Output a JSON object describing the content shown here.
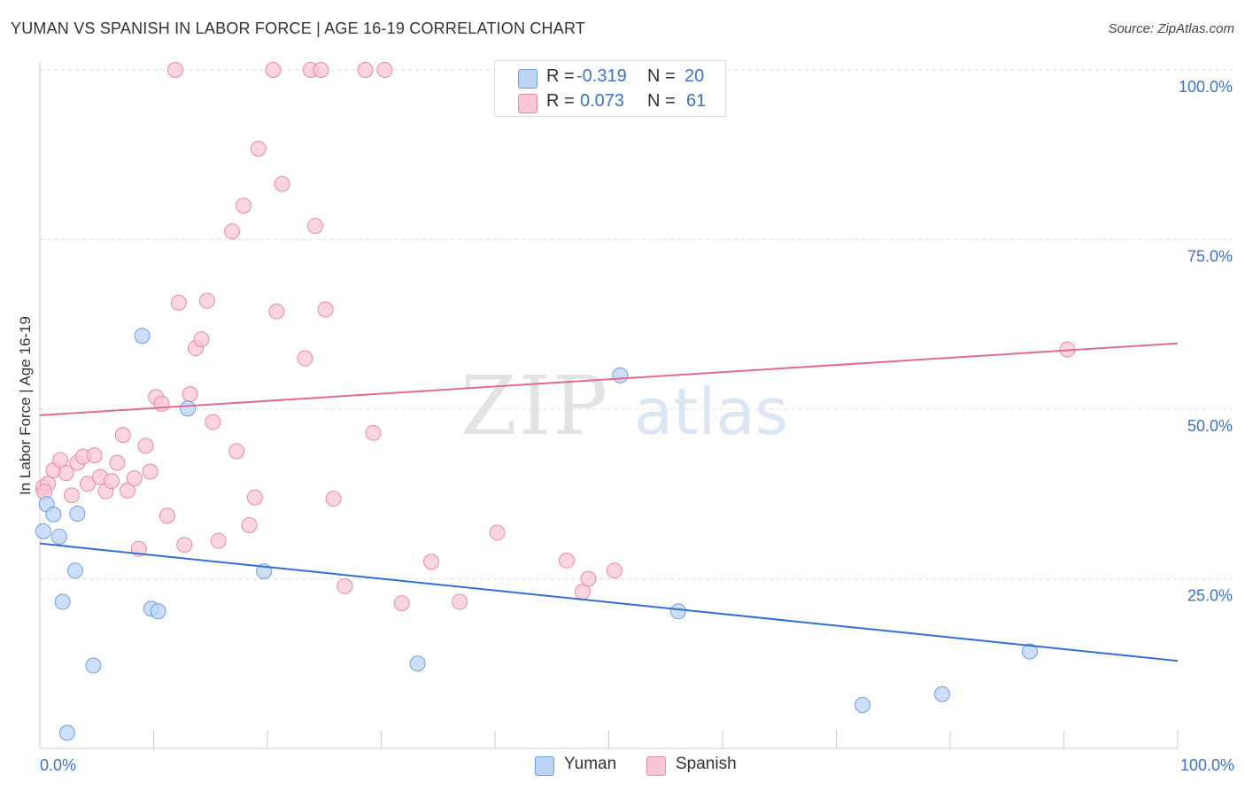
{
  "header": {
    "title": "YUMAN VS SPANISH IN LABOR FORCE | AGE 16-19 CORRELATION CHART",
    "source": "Source: ZipAtlas.com"
  },
  "colors": {
    "yuman_fill": "#bcd4f6",
    "yuman_stroke": "#6f9fe0",
    "yuman_line": "#2f6fd0",
    "spanish_fill": "#f8c6d4",
    "spanish_stroke": "#ea8aa6",
    "spanish_line": "#e06b92",
    "tick_text": "#3b73c9",
    "grid": "#dddddd"
  },
  "legend": {
    "rows": [
      {
        "r_label": "R =",
        "r_value": "-0.319",
        "n_label": "N =",
        "n_value": "20"
      },
      {
        "r_label": "R =",
        "r_value": "0.073",
        "n_label": "N =",
        "n_value": "61"
      }
    ]
  },
  "bottom_legend": {
    "series1": "Yuman",
    "series2": "Spanish"
  },
  "watermark": {
    "part1": "ZIP",
    "part2": "atlas"
  },
  "chart_data": {
    "type": "scatter",
    "title": "YUMAN VS SPANISH IN LABOR FORCE | AGE 16-19 CORRELATION CHART",
    "xlabel": "",
    "ylabel": "In Labor Force | Age 16-19",
    "xlim": [
      0,
      100
    ],
    "ylim": [
      0,
      100
    ],
    "x_tick_labels": [
      "0.0%",
      "100.0%"
    ],
    "y_ticks": [
      25,
      50,
      75,
      100
    ],
    "y_tick_labels": [
      "25.0%",
      "50.0%",
      "75.0%",
      "100.0%"
    ],
    "legend_position": "top-center",
    "series": [
      {
        "name": "Yuman",
        "R": -0.319,
        "N": 20,
        "trend": [
          [
            0,
            30.2
          ],
          [
            100,
            12.9
          ]
        ],
        "points": [
          [
            0.3,
            32
          ],
          [
            0.6,
            36
          ],
          [
            1.2,
            34.5
          ],
          [
            1.7,
            31.2
          ],
          [
            2,
            21.6
          ],
          [
            2.4,
            2.3
          ],
          [
            3.1,
            26.2
          ],
          [
            3.3,
            34.6
          ],
          [
            4.7,
            12.2
          ],
          [
            9,
            60.8
          ],
          [
            9.8,
            20.6
          ],
          [
            10.4,
            20.2
          ],
          [
            13,
            50.1
          ],
          [
            19.7,
            26.1
          ],
          [
            33.2,
            12.5
          ],
          [
            51,
            55
          ],
          [
            56.1,
            20.2
          ],
          [
            72.3,
            6.4
          ],
          [
            79.3,
            8
          ],
          [
            87,
            14.3
          ]
        ]
      },
      {
        "name": "Spanish",
        "R": 0.073,
        "N": 61,
        "trend": [
          [
            0,
            49.1
          ],
          [
            100,
            59.7
          ]
        ],
        "points": [
          [
            0.3,
            38.5
          ],
          [
            0.7,
            39
          ],
          [
            1.2,
            41
          ],
          [
            1.8,
            42.5
          ],
          [
            2.3,
            40.6
          ],
          [
            2.8,
            37.3
          ],
          [
            3.3,
            42.1
          ],
          [
            3.8,
            43
          ],
          [
            4.2,
            39
          ],
          [
            4.8,
            43.2
          ],
          [
            5.3,
            40
          ],
          [
            5.8,
            37.9
          ],
          [
            6.3,
            39.4
          ],
          [
            6.8,
            42.1
          ],
          [
            7.3,
            46.2
          ],
          [
            7.7,
            38
          ],
          [
            8.3,
            39.8
          ],
          [
            8.7,
            29.4
          ],
          [
            9.3,
            44.6
          ],
          [
            9.7,
            40.8
          ],
          [
            10.2,
            51.8
          ],
          [
            10.7,
            50.8
          ],
          [
            11.2,
            34.3
          ],
          [
            11.9,
            100
          ],
          [
            12.2,
            65.7
          ],
          [
            12.7,
            30
          ],
          [
            13.2,
            52.2
          ],
          [
            13.7,
            59
          ],
          [
            14.2,
            60.3
          ],
          [
            14.7,
            66
          ],
          [
            15.2,
            48.1
          ],
          [
            15.7,
            30.6
          ],
          [
            16.9,
            76.2
          ],
          [
            17.3,
            43.8
          ],
          [
            17.9,
            80
          ],
          [
            18.4,
            32.9
          ],
          [
            18.9,
            37
          ],
          [
            19.2,
            88.4
          ],
          [
            20.5,
            100
          ],
          [
            20.8,
            64.4
          ],
          [
            21.3,
            83.2
          ],
          [
            23.3,
            57.5
          ],
          [
            23.8,
            100
          ],
          [
            24.2,
            77
          ],
          [
            24.7,
            100
          ],
          [
            25.1,
            64.7
          ],
          [
            25.8,
            36.8
          ],
          [
            26.8,
            23.9
          ],
          [
            28.6,
            100
          ],
          [
            29.3,
            46.5
          ],
          [
            30.3,
            100
          ],
          [
            31.8,
            21.4
          ],
          [
            34.4,
            27.5
          ],
          [
            36.9,
            21.6
          ],
          [
            40.2,
            31.8
          ],
          [
            46.3,
            27.7
          ],
          [
            47.7,
            23.1
          ],
          [
            48.2,
            25
          ],
          [
            50.5,
            26.2
          ],
          [
            90.3,
            58.8
          ],
          [
            0.4,
            37.8
          ]
        ]
      }
    ]
  }
}
